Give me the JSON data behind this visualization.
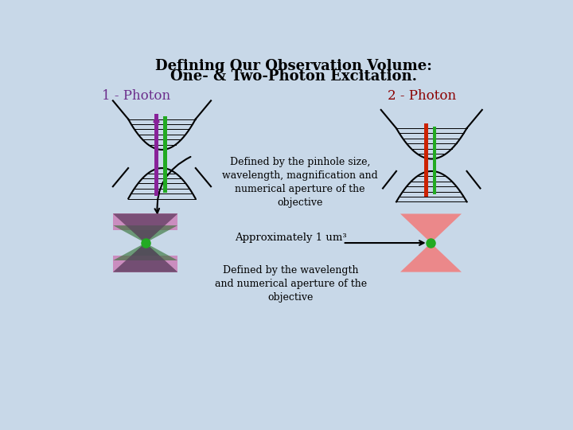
{
  "title_line1": "Defining Our Observation Volume:",
  "title_line2": "One- & Two-Photon Excitation.",
  "label_1photon": "1 - Photon",
  "label_2photon": "2 - Photon",
  "text_defined_pinhole": "Defined by the pinhole size,\nwavelength, magnification and\nnumerical aperture of the\nobjective",
  "text_approx": "Approximately 1 um³",
  "text_defined_wavelength": "Defined by the wavelength\nand numerical aperture of the\nobjective",
  "bg_color": "#c8d8e8",
  "title_color": "#000000",
  "label1_color": "#6b2d8b",
  "label2_color": "#8b0000",
  "body_text_color": "#000000",
  "green_color": "#22aa22",
  "purple_color": "#882299",
  "red_color": "#cc2200",
  "pink_color": "#f08080",
  "dark_green_color": "#2d6e2d",
  "pink_band_color": "#cc66aa"
}
